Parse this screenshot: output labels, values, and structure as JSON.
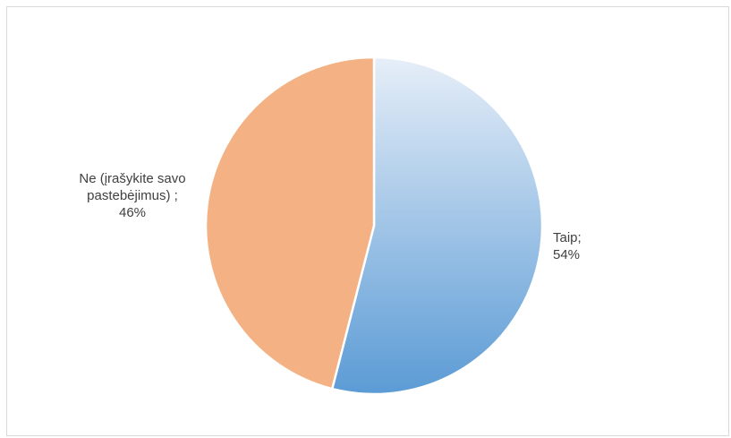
{
  "chart_data": {
    "type": "pie",
    "title": "",
    "slices": [
      {
        "label": "Taip",
        "value": 54,
        "label_lines": [
          "Taip;",
          "54%"
        ],
        "color_start": "#e6eef8",
        "color_end": "#5b9bd5"
      },
      {
        "label": "Ne (įrašykite savo pastebėjimus)",
        "value": 46,
        "label_lines": [
          "Ne (įrašykite savo",
          "pastebėjimus) ;",
          "46%"
        ],
        "color": "#f4b183"
      }
    ],
    "legend": "none",
    "start_angle": "12 o'clock, clockwise"
  }
}
